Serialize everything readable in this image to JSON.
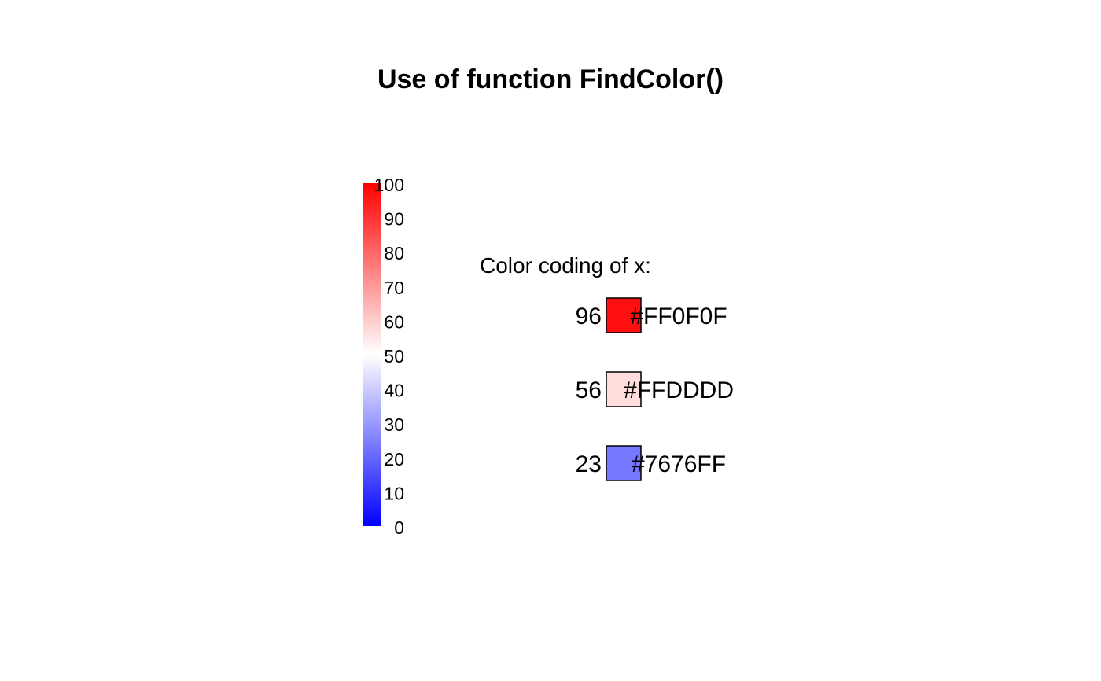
{
  "chart_data": {
    "type": "other",
    "title": "Use of function FindColor()",
    "colorbar": {
      "range": [
        0,
        100
      ],
      "ticks": [
        "0",
        "10",
        "20",
        "30",
        "40",
        "50",
        "60",
        "70",
        "80",
        "90",
        "100"
      ],
      "tick_values": [
        0,
        10,
        20,
        30,
        40,
        50,
        60,
        70,
        80,
        90,
        100
      ],
      "color_low": "#0000FF",
      "color_mid": "#FFFFFF",
      "color_high": "#FF0000"
    },
    "legend": {
      "heading": "Color coding of x:",
      "entries": [
        {
          "value": "96",
          "color": "#FF0F0F",
          "hex_label": "#FF0F0F"
        },
        {
          "value": "56",
          "color": "#FFDDDD",
          "hex_label": "#FFDDDD"
        },
        {
          "value": "23",
          "color": "#7676FF",
          "hex_label": "#7676FF"
        }
      ]
    }
  }
}
